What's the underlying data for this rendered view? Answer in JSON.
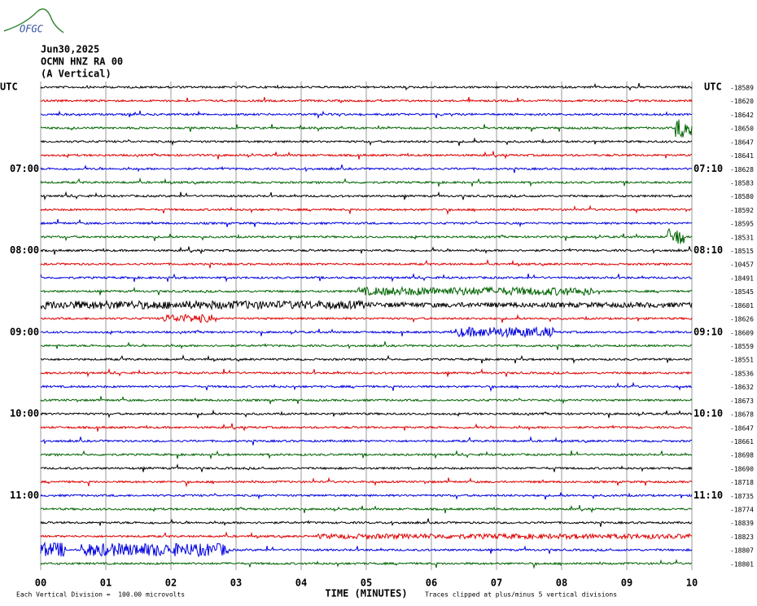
{
  "logo": "OFGC",
  "header": {
    "date": "Jun30,2025",
    "station": "OCMN HNZ RA 00",
    "component": "(A Vertical)"
  },
  "left_axis": {
    "title": "UTC",
    "labels": [
      "07:00",
      "08:00",
      "09:00",
      "10:00",
      "11:00"
    ]
  },
  "right_axis": {
    "title": "UTC",
    "labels": [
      "07:10",
      "08:10",
      "09:10",
      "10:10",
      "11:10"
    ],
    "offsets": [
      "-18589",
      "-18620",
      "-18642",
      "-18650",
      "-18647",
      "-18641",
      "-18628",
      "-18583",
      "-18580",
      "-18592",
      "-18595",
      "-18531",
      "-18515",
      "-10457",
      "-18491",
      "-18545",
      "-18601",
      "-18626",
      "-18609",
      "-18559",
      "-18551",
      "-18536",
      "-18632",
      "-18673",
      "-18678",
      "-18647",
      "-18661",
      "-18698",
      "-18690",
      "-18718",
      "-18735",
      "-18774",
      "-18839",
      "-18823",
      "-18807",
      "-18801"
    ]
  },
  "x_axis": {
    "title": "TIME (MINUTES)",
    "ticks": [
      "00",
      "01",
      "02",
      "03",
      "04",
      "05",
      "06",
      "07",
      "08",
      "09",
      "10"
    ]
  },
  "footer": {
    "scale": "Each Vertical Division =  100.00 microvolts",
    "clip": "Traces clipped at plus/minus 5 vertical divisions"
  },
  "trace_colors": [
    "#000000",
    "#e00000",
    "#0000e0",
    "#006400"
  ]
}
